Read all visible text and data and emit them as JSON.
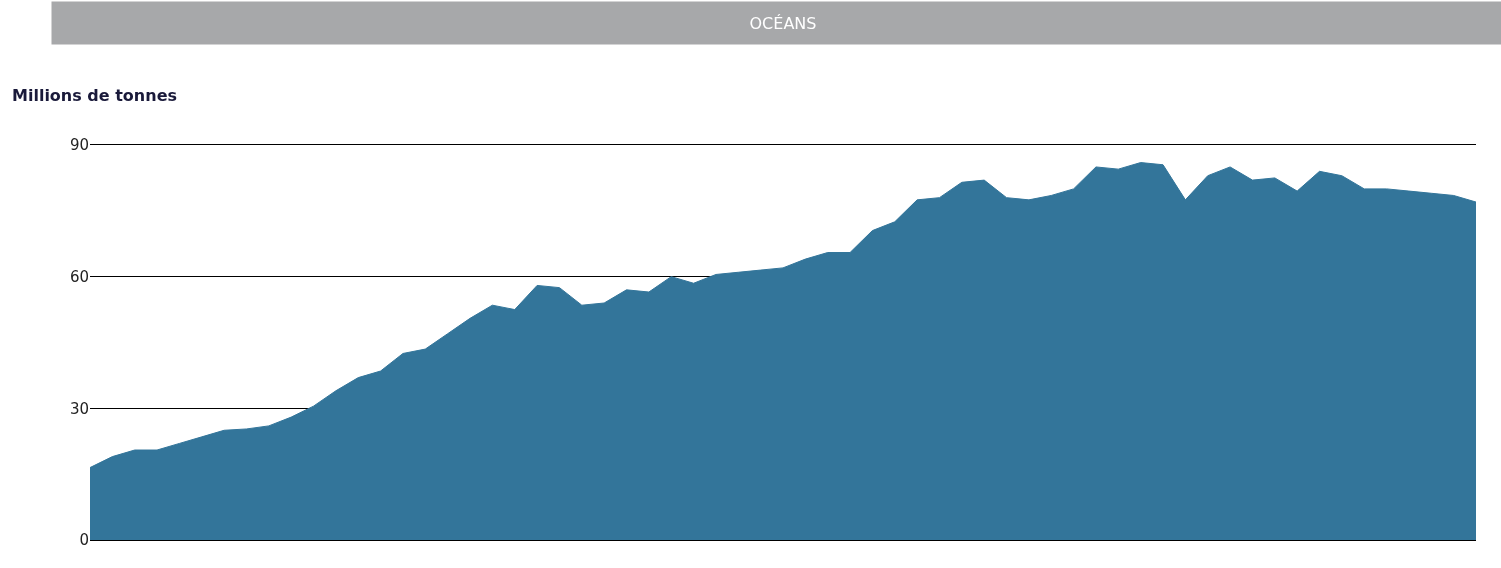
{
  "chart_data": {
    "type": "area",
    "title": "OCÉANS",
    "ylabel": "Millions de tonnes",
    "categories": [
      null,
      null,
      null,
      null,
      null,
      null,
      null,
      null,
      null,
      null,
      null,
      null,
      null,
      null,
      null,
      null,
      null,
      null,
      null,
      null,
      null,
      null,
      null,
      null,
      null,
      null,
      null,
      null,
      null,
      null,
      null,
      null,
      null,
      null,
      null,
      null,
      null,
      null,
      null,
      null,
      null,
      null,
      null,
      null,
      null,
      null,
      null,
      null,
      null,
      null,
      null,
      null,
      null,
      null,
      null,
      null,
      null,
      null,
      null,
      null,
      null,
      null,
      null
    ],
    "values": [
      16.5,
      19,
      20.5,
      20.5,
      22,
      23.5,
      25,
      25.3,
      26,
      28,
      30.5,
      34,
      37,
      38.5,
      42.5,
      43.5,
      47,
      50.5,
      53.5,
      52.5,
      58,
      57.5,
      53.5,
      54,
      57,
      56.5,
      60,
      58.5,
      60.5,
      61,
      61.5,
      62,
      64,
      65.5,
      65.5,
      70.5,
      72.5,
      77.5,
      78,
      81.5,
      82,
      78,
      77.5,
      78.5,
      80,
      85,
      84.5,
      86,
      85.5,
      77.5,
      83,
      85,
      82,
      82.5,
      79.5,
      84,
      83,
      80,
      80,
      79.5,
      79,
      78.5,
      77
    ],
    "color": "#33759a",
    "ylim": [
      0,
      90
    ],
    "yticks": [
      0,
      30,
      60,
      90
    ],
    "grid": "y",
    "tick_labels": "y"
  }
}
